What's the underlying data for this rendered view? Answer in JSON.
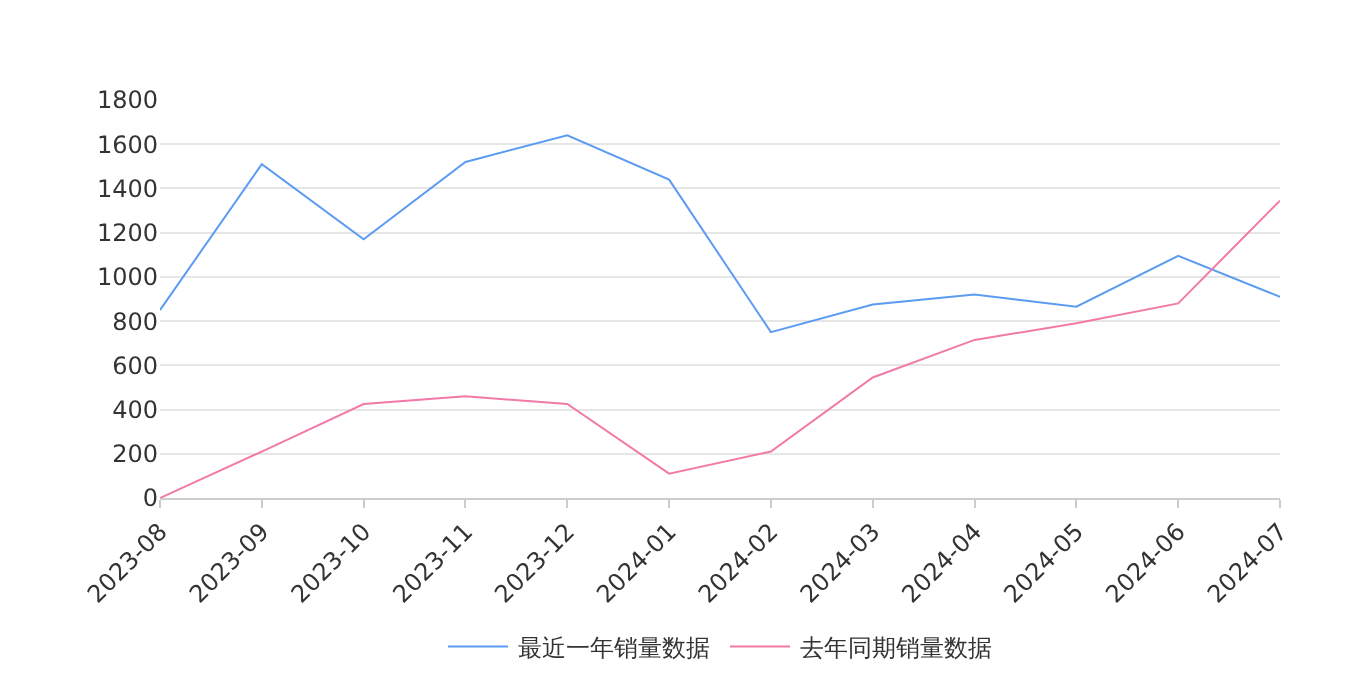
{
  "chart_data": {
    "type": "line",
    "categories": [
      "2023-08",
      "2023-09",
      "2023-10",
      "2023-11",
      "2023-12",
      "2024-01",
      "2024-02",
      "2024-03",
      "2024-04",
      "2024-05",
      "2024-06",
      "2024-07"
    ],
    "series": [
      {
        "name": "最近一年销量数据",
        "color": "#5b9cf2",
        "values": [
          850,
          1510,
          1170,
          1520,
          1640,
          1440,
          750,
          875,
          920,
          865,
          1095,
          910
        ]
      },
      {
        "name": "去年同期销量数据",
        "color": "#f27aa8",
        "values": [
          0,
          210,
          425,
          460,
          425,
          110,
          210,
          545,
          715,
          790,
          880,
          1345
        ]
      }
    ],
    "ylim": [
      0,
      1800
    ],
    "yticks": [
      0,
      200,
      400,
      600,
      800,
      1000,
      1200,
      1400,
      1600,
      1800
    ],
    "grid": "y",
    "legend": "bottom",
    "marker": "none",
    "line_style": "solid"
  }
}
